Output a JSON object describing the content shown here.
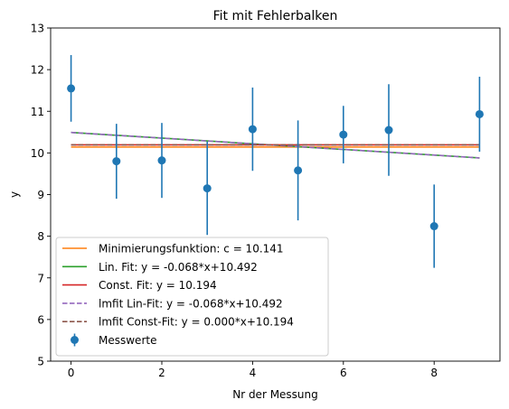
{
  "chart_data": {
    "type": "scatter",
    "title": "Fit mit Fehlerbalken",
    "xlabel": "Nr der Messung",
    "ylabel": "y",
    "xlim": [
      -0.45,
      9.45
    ],
    "ylim": [
      5,
      13
    ],
    "x_ticks": [
      0,
      2,
      4,
      6,
      8
    ],
    "y_ticks": [
      5,
      6,
      7,
      8,
      9,
      10,
      11,
      12,
      13
    ],
    "grid": false,
    "legend_position": "lower-left",
    "measurements": {
      "name": "Messwerte",
      "color": "#1f77b4",
      "x": [
        0,
        1,
        2,
        3,
        4,
        5,
        6,
        7,
        8,
        9
      ],
      "y": [
        11.55,
        9.8,
        9.82,
        9.15,
        10.57,
        9.58,
        10.44,
        10.55,
        8.24,
        10.93
      ],
      "yerr": [
        0.8,
        0.9,
        0.9,
        1.12,
        1.0,
        1.2,
        0.69,
        1.1,
        1.0,
        0.9
      ]
    },
    "fits": [
      {
        "name": "Minimierungsfunktion: c = 10.141",
        "color": "#ff7f0e",
        "dashed": false,
        "slope": 0,
        "intercept": 10.141
      },
      {
        "name": "Lin. Fit: y = -0.068*x+10.492",
        "color": "#2ca02c",
        "dashed": false,
        "slope": -0.068,
        "intercept": 10.492
      },
      {
        "name": "Const. Fit: y = 10.194",
        "color": "#d62728",
        "dashed": false,
        "slope": 0,
        "intercept": 10.194
      },
      {
        "name": "lmfit Lin-Fit: y = -0.068*x+10.492",
        "color": "#9467bd",
        "dashed": true,
        "slope": -0.068,
        "intercept": 10.492
      },
      {
        "name": "lmfit Const-Fit: y = 0.000*x+10.194",
        "color": "#8c564b",
        "dashed": true,
        "slope": 0,
        "intercept": 10.194
      }
    ]
  }
}
